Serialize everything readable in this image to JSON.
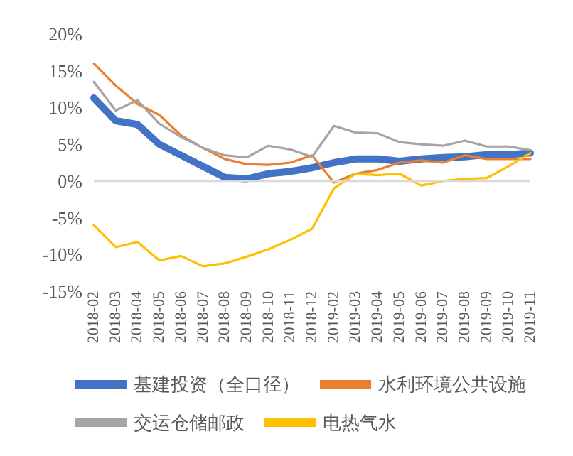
{
  "chart_data": {
    "type": "line",
    "categories": [
      "2018-02",
      "2018-03",
      "2018-04",
      "2018-05",
      "2018-06",
      "2018-07",
      "2018-08",
      "2018-09",
      "2018-10",
      "2018-11",
      "2018-12",
      "2019-02",
      "2019-03",
      "2019-04",
      "2019-05",
      "2019-06",
      "2019-07",
      "2019-08",
      "2019-09",
      "2019-10",
      "2019-11"
    ],
    "series": [
      {
        "name": "基建投资（全口径）",
        "color": "#4472c4",
        "values": [
          11.3,
          8.2,
          7.7,
          5,
          3.5,
          2,
          0.5,
          0.3,
          1,
          1.3,
          1.8,
          2.5,
          3,
          3,
          2.7,
          3,
          3.2,
          3.3,
          3.6,
          3.6,
          3.8
        ]
      },
      {
        "name": "水利环境公共设施",
        "color": "#ed7d31",
        "values": [
          16,
          13,
          10.5,
          9,
          6.2,
          4.5,
          3,
          2.3,
          2.2,
          2.5,
          3.5,
          -0.2,
          1,
          1.5,
          2.5,
          2.8,
          2.5,
          3.5,
          3,
          3,
          3
        ]
      },
      {
        "name": "交运仓储邮政",
        "color": "#a5a5a5",
        "values": [
          13.5,
          9.6,
          11,
          7.8,
          6,
          4.5,
          3.5,
          3.2,
          4.8,
          4.3,
          3.3,
          7.5,
          6.6,
          6.5,
          5.3,
          5,
          4.8,
          5.5,
          4.7,
          4.7,
          4.2
        ]
      },
      {
        "name": "电热气水",
        "color": "#ffc000",
        "values": [
          -6,
          -9,
          -8.3,
          -10.8,
          -10.2,
          -11.6,
          -11.2,
          -10.3,
          -9.3,
          -8,
          -6.5,
          -1,
          1,
          0.8,
          1,
          -0.6,
          0,
          0.3,
          0.4,
          2,
          3.8
        ]
      }
    ],
    "ylim": [
      -15,
      20
    ],
    "yticks": [
      {
        "value": -15,
        "label": "-15%"
      },
      {
        "value": -10,
        "label": "-10%"
      },
      {
        "value": -5,
        "label": "-5%"
      },
      {
        "value": 0,
        "label": "0%"
      },
      {
        "value": 5,
        "label": "5%"
      },
      {
        "value": 10,
        "label": "10%"
      },
      {
        "value": 15,
        "label": "15%"
      },
      {
        "value": 20,
        "label": "20%"
      }
    ],
    "ref_lines": [
      {
        "axis": "y",
        "value": 0,
        "color": "#d9d9d9"
      }
    ],
    "grid": false,
    "legend": "bottom",
    "marker": "none",
    "line_style": "solid"
  }
}
